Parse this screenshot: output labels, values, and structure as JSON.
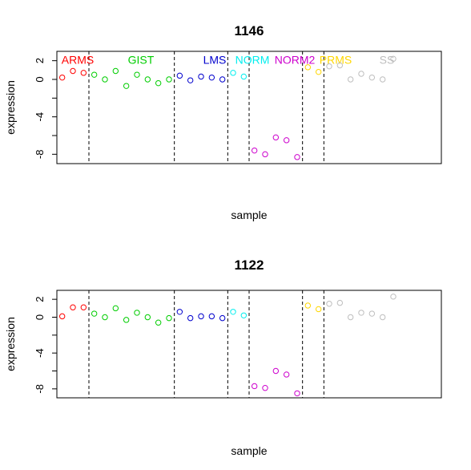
{
  "chart_data": [
    {
      "type": "scatter",
      "title": "1146",
      "xlabel": "sample",
      "ylabel": "expression",
      "xlim": [
        0.5,
        36.5
      ],
      "ylim": [
        -9,
        3
      ],
      "yticks": [
        2,
        0,
        -4,
        -8
      ],
      "yticks_unlabeled": [
        -2,
        -6
      ],
      "grid": false,
      "group_boundaries": [
        3.5,
        11.5,
        16.5,
        18.5,
        23.5,
        25.5
      ],
      "groups": [
        {
          "name": "ARMS",
          "color": "#ff0000",
          "x": [
            1,
            2,
            3
          ],
          "values": [
            0.2,
            0.9,
            0.7
          ]
        },
        {
          "name": "GIST",
          "color": "#00cd00",
          "x": [
            4,
            5,
            6,
            7,
            8,
            9,
            10,
            11
          ],
          "values": [
            0.5,
            0.0,
            0.9,
            -0.7,
            0.5,
            0.0,
            -0.4,
            0.0
          ]
        },
        {
          "name": "LMS",
          "color": "#0000cd",
          "x": [
            12,
            13,
            14,
            15,
            16
          ],
          "values": [
            0.4,
            -0.1,
            0.3,
            0.2,
            0.0
          ]
        },
        {
          "name": "NORM",
          "color": "#00eeee",
          "x": [
            17,
            18
          ],
          "values": [
            0.7,
            0.3
          ]
        },
        {
          "name": "NORM2",
          "color": "#cd00cd",
          "x": [
            19,
            20,
            21,
            22,
            23
          ],
          "values": [
            -7.6,
            -8.0,
            -6.2,
            -6.5,
            -8.3
          ]
        },
        {
          "name": "PRMS",
          "color": "#ffd700",
          "x": [
            24,
            25
          ],
          "values": [
            1.3,
            0.8
          ]
        },
        {
          "name": "SS",
          "color": "#bebebe",
          "x": [
            26,
            27,
            28,
            29,
            30,
            31,
            32
          ],
          "values": [
            1.4,
            1.5,
            0.0,
            0.6,
            0.2,
            0.0,
            2.2
          ]
        }
      ]
    },
    {
      "type": "scatter",
      "title": "1122",
      "xlabel": "sample",
      "ylabel": "expression",
      "xlim": [
        0.5,
        36.5
      ],
      "ylim": [
        -9,
        3
      ],
      "yticks": [
        2,
        0,
        -4,
        -8
      ],
      "yticks_unlabeled": [
        -2,
        -6
      ],
      "grid": false,
      "group_boundaries": [
        3.5,
        11.5,
        16.5,
        18.5,
        23.5,
        25.5
      ],
      "groups": [
        {
          "name": "",
          "color": "#ff0000",
          "x": [
            1,
            2,
            3
          ],
          "values": [
            0.1,
            1.1,
            1.1
          ]
        },
        {
          "name": "",
          "color": "#00cd00",
          "x": [
            4,
            5,
            6,
            7,
            8,
            9,
            10,
            11
          ],
          "values": [
            0.4,
            0.0,
            1.0,
            -0.3,
            0.5,
            0.0,
            -0.6,
            -0.1
          ]
        },
        {
          "name": "",
          "color": "#0000cd",
          "x": [
            12,
            13,
            14,
            15,
            16
          ],
          "values": [
            0.6,
            -0.1,
            0.1,
            0.1,
            -0.1
          ]
        },
        {
          "name": "",
          "color": "#00eeee",
          "x": [
            17,
            18
          ],
          "values": [
            0.6,
            0.2
          ]
        },
        {
          "name": "",
          "color": "#cd00cd",
          "x": [
            19,
            20,
            21,
            22,
            23
          ],
          "values": [
            -7.7,
            -7.9,
            -6.0,
            -6.4,
            -8.5
          ]
        },
        {
          "name": "",
          "color": "#ffd700",
          "x": [
            24,
            25
          ],
          "values": [
            1.3,
            0.9
          ]
        },
        {
          "name": "",
          "color": "#bebebe",
          "x": [
            26,
            27,
            28,
            29,
            30,
            31,
            32
          ],
          "values": [
            1.5,
            1.6,
            0.0,
            0.5,
            0.4,
            0.0,
            2.3
          ]
        }
      ]
    }
  ]
}
